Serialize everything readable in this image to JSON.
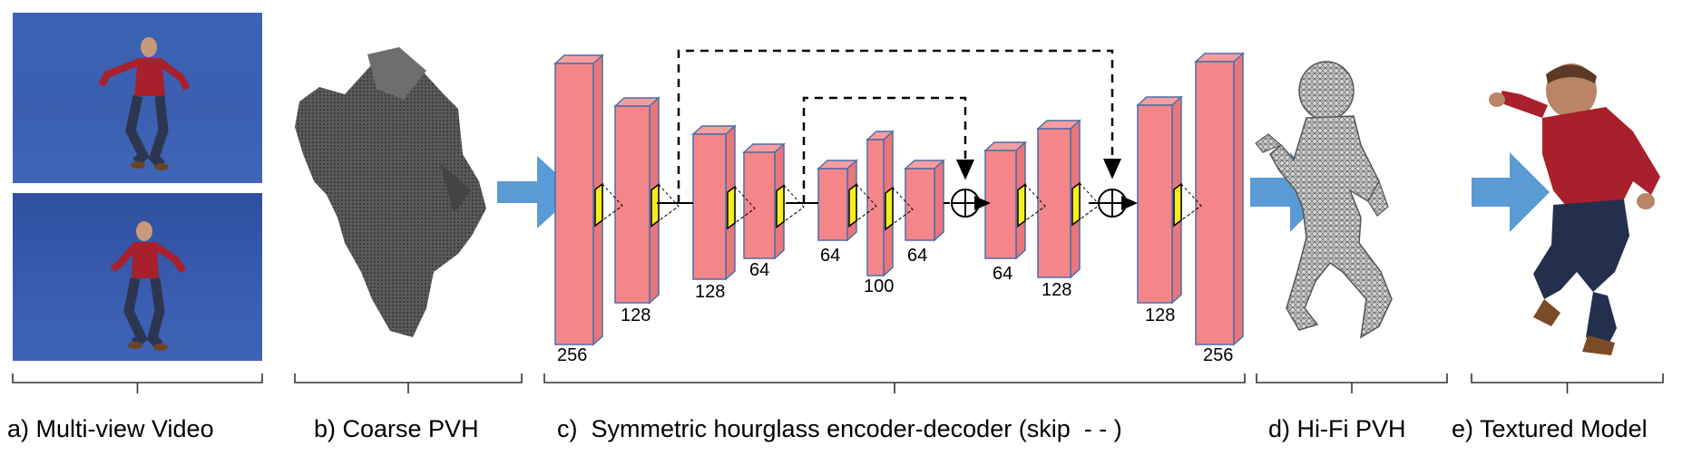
{
  "panels": {
    "a": {
      "caption": "a) Multi-view Video"
    },
    "b": {
      "caption": "b) Coarse PVH"
    },
    "c": {
      "caption": "c)  Symmetric hourglass encoder-decoder (skip  - - )"
    },
    "d": {
      "caption": "d) Hi-Fi PVH"
    },
    "e": {
      "caption": "e) Textured Model"
    }
  },
  "network": {
    "block_labels": [
      "256",
      "128",
      "128",
      "64",
      "64",
      "100",
      "64",
      "64",
      "128",
      "128",
      "256"
    ]
  },
  "colors": {
    "block_fill": "#f4868a",
    "block_stroke": "#4a6fa8",
    "kernel_fill": "#f5ee1e",
    "arrow_fill": "#5b9bd5",
    "photo_bg": "#3a5fb0",
    "shirt": "#a8202c",
    "mesh_gray": "#555555"
  }
}
